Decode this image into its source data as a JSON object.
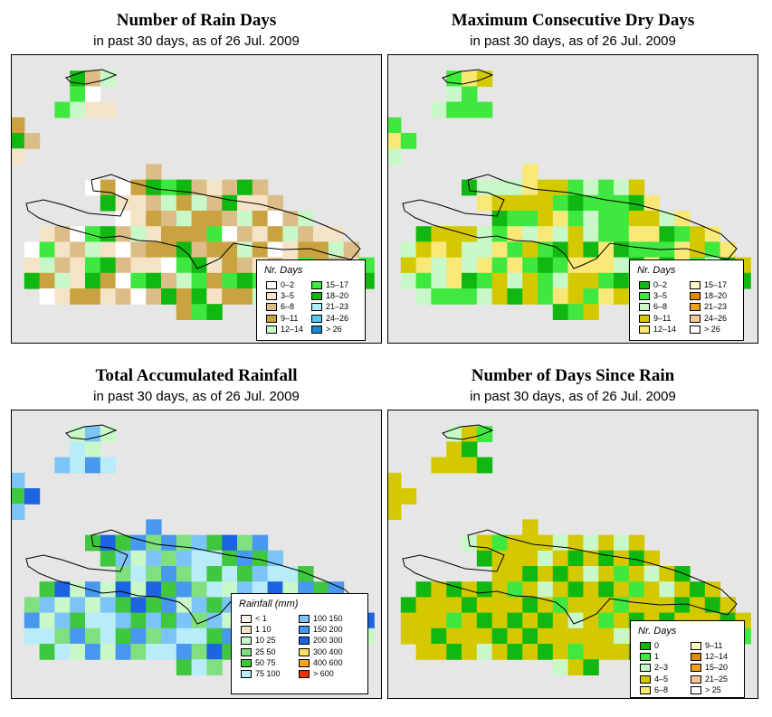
{
  "panels": [
    {
      "id": "rain-days",
      "title": "Number of Rain Days",
      "subtitle": "in past 30 days, as of  26 Jul. 2009",
      "legend": {
        "title": "Nr. Days",
        "items": [
          {
            "label": "0–2",
            "color": "#ffffff"
          },
          {
            "label": "3–5",
            "color": "#f5e3c7"
          },
          {
            "label": "6–8",
            "color": "#dcbd88"
          },
          {
            "label": "9–11",
            "color": "#c9a33f"
          },
          {
            "label": "12–14",
            "color": "#c8f7c8"
          },
          {
            "label": "15–17",
            "color": "#3fe83f"
          },
          {
            "label": "18–20",
            "color": "#11b811"
          },
          {
            "label": "21–23",
            "color": "#aeeefa"
          },
          {
            "label": "24–26",
            "color": "#55c8f0"
          },
          {
            "label": "> 26",
            "color": "#1589d1"
          }
        ]
      }
    },
    {
      "id": "dry-days",
      "title": "Maximum Consecutive Dry Days",
      "subtitle": "in past 30 days, as of  26 Jul. 2009",
      "legend": {
        "title": "Nr. Days",
        "items": [
          {
            "label": "0–2",
            "color": "#11b811"
          },
          {
            "label": "3–5",
            "color": "#3fe83f"
          },
          {
            "label": "6–8",
            "color": "#c8f7c8"
          },
          {
            "label": "9–11",
            "color": "#d4c800"
          },
          {
            "label": "12–14",
            "color": "#f8e878"
          },
          {
            "label": "15–17",
            "color": "#fdf8c8"
          },
          {
            "label": "18–20",
            "color": "#e08a00"
          },
          {
            "label": "21–23",
            "color": "#f0a020"
          },
          {
            "label": "24–26",
            "color": "#f8c898"
          },
          {
            "label": "> 26",
            "color": "#ffffff"
          }
        ]
      }
    },
    {
      "id": "rainfall",
      "title": "Total Accumulated Rainfall",
      "subtitle": "in past 30 days, as of  26 Jul. 2009",
      "legend": {
        "title": "Rainfall (mm)",
        "items": [
          {
            "label": "< 1",
            "color": "#fdf5e8"
          },
          {
            "label": "1    10",
            "color": "#f5e3c7"
          },
          {
            "label": "10    25",
            "color": "#c8f7c8"
          },
          {
            "label": "25    50",
            "color": "#80e080"
          },
          {
            "label": "50    75",
            "color": "#3fc83f"
          },
          {
            "label": "75    100",
            "color": "#b8ecf8"
          },
          {
            "label": "100    150",
            "color": "#7cc4f8"
          },
          {
            "label": "150    200",
            "color": "#4898f0"
          },
          {
            "label": "200    300",
            "color": "#1c64e0"
          },
          {
            "label": "300    400",
            "color": "#f8e060"
          },
          {
            "label": "400    600",
            "color": "#f8a020"
          },
          {
            "label": "> 600",
            "color": "#f03000"
          }
        ]
      }
    },
    {
      "id": "days-since-rain",
      "title": "Number of Days Since Rain",
      "subtitle": "in past 30 days, as of  26 Jul. 2009",
      "legend": {
        "title": "Nr. Days",
        "items": [
          {
            "label": "0",
            "color": "#11b811"
          },
          {
            "label": "1",
            "color": "#3fe83f"
          },
          {
            "label": "2–3",
            "color": "#c8f7c8"
          },
          {
            "label": "4–5",
            "color": "#d4c800"
          },
          {
            "label": "6–8",
            "color": "#f8e878"
          },
          {
            "label": "9–11",
            "color": "#fdf8c8"
          },
          {
            "label": "12–14",
            "color": "#e08a00"
          },
          {
            "label": "15–20",
            "color": "#f0a020"
          },
          {
            "label": "21–25",
            "color": "#f8c898"
          },
          {
            "label": "> 25",
            "color": "#ffffff"
          }
        ]
      }
    }
  ]
}
